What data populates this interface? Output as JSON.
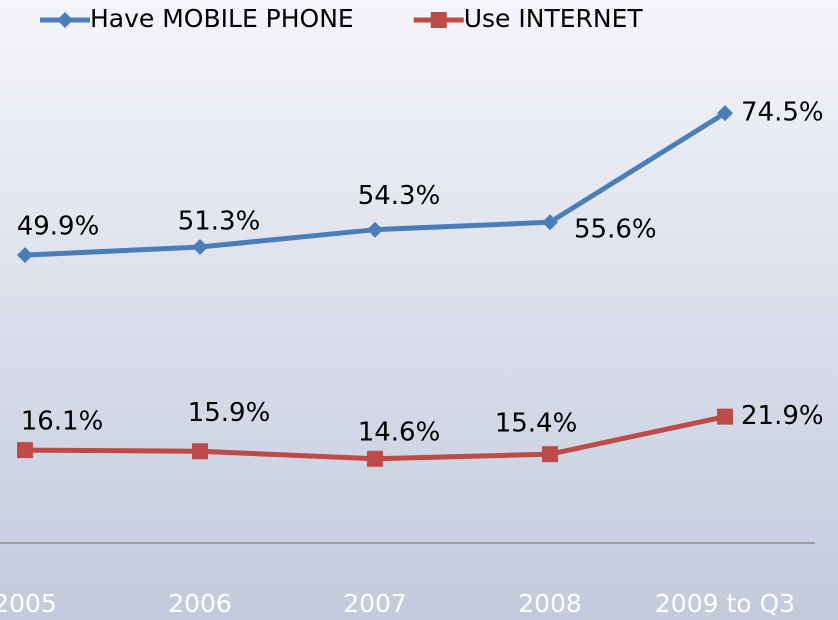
{
  "chart_data": {
    "type": "line",
    "categories": [
      "2005",
      "2006",
      "2007",
      "2008",
      "2009 to Q3"
    ],
    "series": [
      {
        "name": "Have MOBILE PHONE",
        "color": "#4a7ebb",
        "values": [
          49.9,
          51.3,
          54.3,
          55.6,
          74.5
        ],
        "value_labels": [
          "49.9%",
          "51.3%",
          "54.3%",
          "55.6%",
          "74.5%"
        ]
      },
      {
        "name": "Use INTERNET",
        "color": "#be4b48",
        "values": [
          16.1,
          15.9,
          14.6,
          15.4,
          21.9
        ],
        "value_labels": [
          "16.1%",
          "15.9%",
          "14.6%",
          "15.4%",
          "21.9%"
        ]
      }
    ],
    "ylim": [
      0,
      80
    ]
  }
}
